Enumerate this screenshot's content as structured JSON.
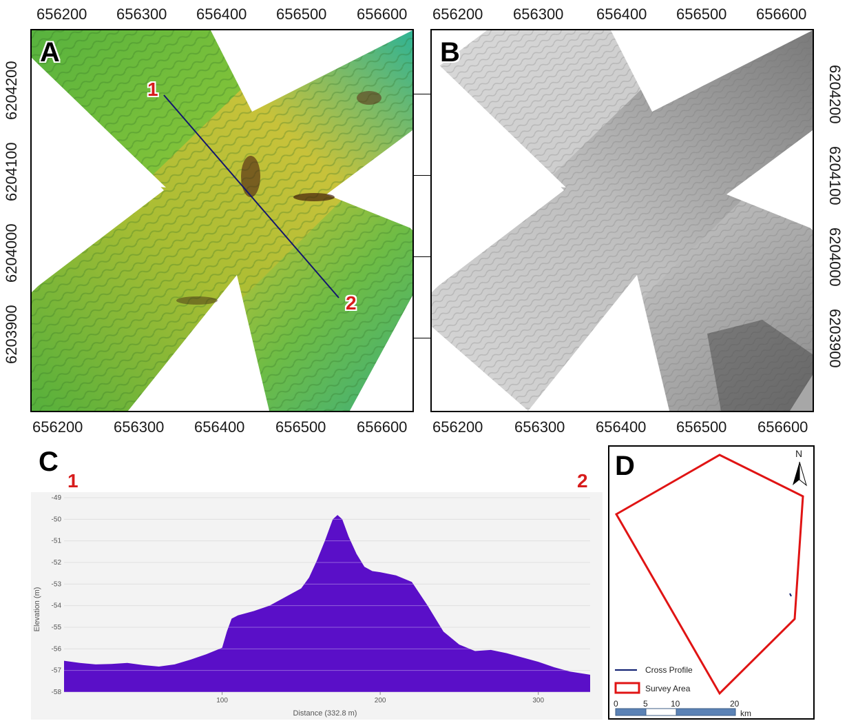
{
  "map_a": {
    "letter": "A",
    "top_ticks": [
      "656200",
      "656300",
      "656400",
      "656500",
      "656600"
    ],
    "bottom_ticks": [
      "656200",
      "656300",
      "656400",
      "656500",
      "656600"
    ],
    "left_ticks": [
      "6204200",
      "6204100",
      "6204000",
      "6203900"
    ],
    "point_1": "1",
    "point_2": "2"
  },
  "map_b": {
    "letter": "B",
    "top_ticks": [
      "656200",
      "656300",
      "656400",
      "656500",
      "656600"
    ],
    "bottom_ticks": [
      "656200",
      "656300",
      "656400",
      "656500",
      "656600"
    ],
    "right_ticks": [
      "6204200",
      "6204100",
      "6204000",
      "6203900"
    ]
  },
  "profile": {
    "letter": "C",
    "start_label": "1",
    "end_label": "2",
    "chart_data": {
      "type": "area",
      "xlabel": "Distance (332.8 m)",
      "ylabel": "Elevation (m)",
      "xlim": [
        0,
        332.8
      ],
      "ylim": [
        -58,
        -49
      ],
      "x_ticks": [
        100,
        200,
        300
      ],
      "y_ticks": [
        -49,
        -50,
        -51,
        -52,
        -53,
        -54,
        -55,
        -56,
        -57,
        -58
      ],
      "fill_color": "#5a0fc8",
      "grid": "horizontal",
      "x": [
        0,
        10,
        20,
        30,
        40,
        50,
        60,
        70,
        80,
        90,
        100,
        103,
        106,
        110,
        120,
        130,
        140,
        150,
        155,
        160,
        165,
        170,
        173,
        176,
        180,
        185,
        190,
        195,
        200,
        210,
        220,
        230,
        240,
        250,
        260,
        270,
        280,
        290,
        300,
        310,
        320,
        332.8
      ],
      "y": [
        -56.55,
        -56.65,
        -56.72,
        -56.7,
        -56.65,
        -56.75,
        -56.82,
        -56.72,
        -56.5,
        -56.25,
        -55.95,
        -55.2,
        -54.6,
        -54.45,
        -54.25,
        -54.0,
        -53.6,
        -53.2,
        -52.7,
        -51.9,
        -51.0,
        -50.0,
        -49.8,
        -50.0,
        -50.8,
        -51.6,
        -52.2,
        -52.4,
        -52.45,
        -52.6,
        -52.9,
        -54.0,
        -55.2,
        -55.8,
        -56.1,
        -56.05,
        -56.2,
        -56.4,
        -56.6,
        -56.85,
        -57.05,
        -57.2
      ]
    }
  },
  "inset": {
    "letter": "D",
    "north_label": "N",
    "legend": {
      "cross_profile": "Cross Profile",
      "survey_area": "Survey Area"
    },
    "scale_bar": {
      "labels": [
        "0",
        "5",
        "10",
        "20"
      ],
      "unit": "km"
    },
    "colors": {
      "survey_area": "#e01414",
      "cross_profile": "#0a1a6e"
    }
  }
}
